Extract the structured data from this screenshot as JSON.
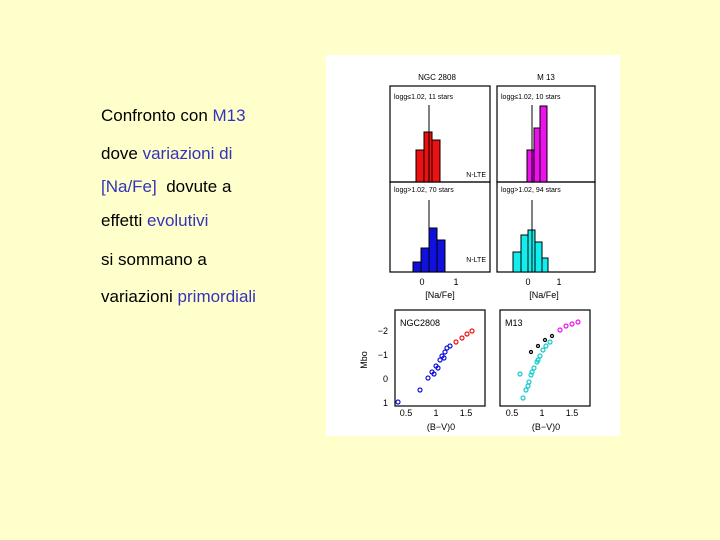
{
  "slide": {
    "lines": [
      [
        {
          "text": "Confronto con ",
          "accent": false
        },
        {
          "text": "M13",
          "accent": true
        }
      ],
      [
        {
          "text": "dove ",
          "accent": false
        },
        {
          "text": "variazioni di",
          "accent": true
        }
      ],
      [
        {
          "text": "[Na/Fe]",
          "accent": true
        },
        {
          "text": "  dovute a",
          "accent": false
        }
      ],
      [
        {
          "text": "effetti ",
          "accent": false
        },
        {
          "text": "evolutivi",
          "accent": true
        }
      ],
      [
        {
          "text": "si sommano a",
          "accent": false
        }
      ],
      [
        {
          "text": "variazioni ",
          "accent": false
        },
        {
          "text": "primordiali",
          "accent": true
        }
      ]
    ],
    "figure": {
      "histograms": {
        "cluster_titles": [
          "NGC 2808",
          "M 13"
        ],
        "panel_labels": [
          "logg≤1.02, 11 stars",
          "logg≤1.02, 10 stars",
          "logg>1.02, 70 stars",
          "logg>1.02, 94 stars"
        ],
        "nlte_labels": [
          "N-LTE",
          "N-LTE"
        ],
        "x_ticks": [
          "0",
          "1"
        ],
        "x_label": "[Na/Fe]"
      },
      "cmd": {
        "panel_labels": [
          "NGC2808",
          "M13"
        ],
        "y_label": "Mbo",
        "y_ticks": [
          "−2",
          "−1",
          "0",
          "1"
        ],
        "x_ticks": [
          "0.5",
          "1",
          "1.5"
        ],
        "x_label": "(B−V)0"
      }
    }
  }
}
